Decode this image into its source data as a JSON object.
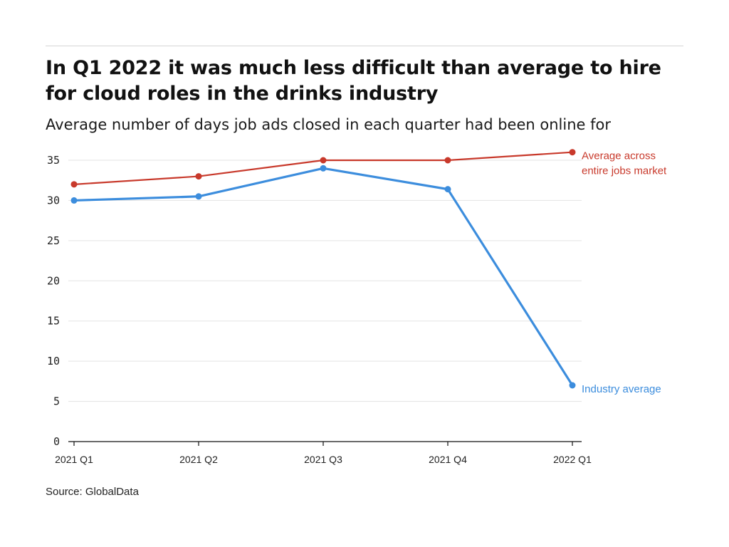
{
  "header": {
    "title": "In Q1 2022 it was much less difficult than average to hire for cloud roles in the drinks industry",
    "subtitle": "Average number of days job ads closed in each quarter had been online for"
  },
  "footer": {
    "source": "Source: GlobalData"
  },
  "chart_data": {
    "type": "line",
    "title": "In Q1 2022 it was much less difficult than average to hire for cloud roles in the drinks industry",
    "subtitle": "Average number of days job ads closed in each quarter had been online for",
    "categories": [
      "2021 Q1",
      "2021 Q2",
      "2021 Q3",
      "2021 Q4",
      "2022 Q1"
    ],
    "series": [
      {
        "name": "Average across entire jobs market",
        "label_lines": [
          "Average across",
          "entire jobs market"
        ],
        "color": "#c8392b",
        "values": [
          32,
          33,
          35,
          35,
          36
        ]
      },
      {
        "name": "Industry average",
        "label_lines": [
          "Industry average"
        ],
        "color": "#3c8ddd",
        "values": [
          30,
          30.5,
          34,
          31.4,
          7
        ]
      }
    ],
    "yticks": [
      "0",
      "5",
      "10",
      "15",
      "20",
      "25",
      "30",
      "35"
    ],
    "ylim": [
      0,
      35
    ],
    "grid": true,
    "legend": "inline-right"
  }
}
